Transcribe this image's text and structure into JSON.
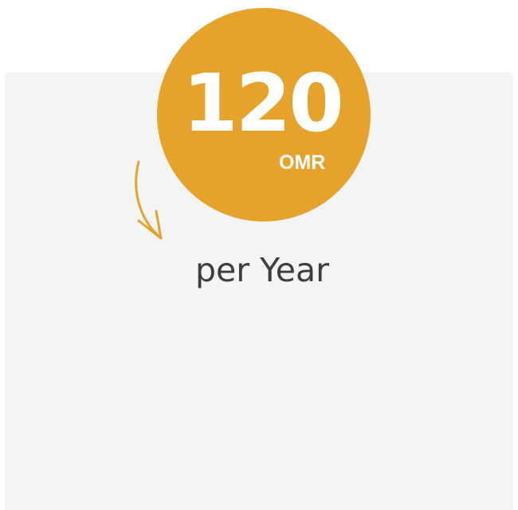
{
  "pricing": {
    "amount": "120",
    "currency": "OMR",
    "period": "per Year"
  },
  "colors": {
    "accent": "#e5a32b",
    "card_background": "#f4f4f4",
    "text": "#3d3d3d"
  },
  "icons": {
    "arrow": "curved-arrow-down-icon"
  }
}
